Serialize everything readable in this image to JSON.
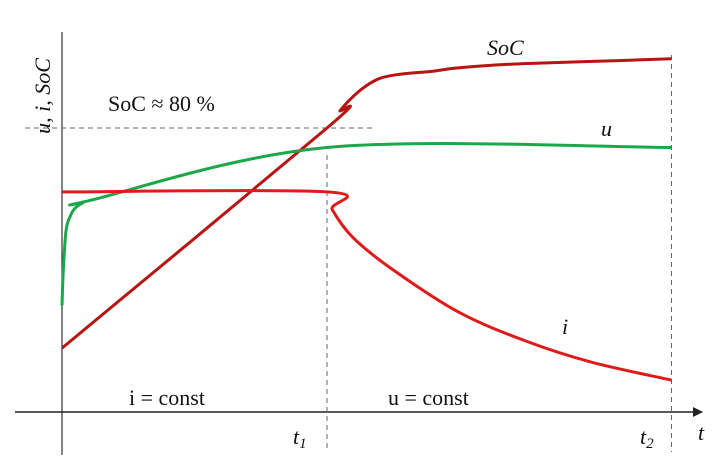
{
  "chart_data": {
    "type": "line",
    "ylabel": "u, i, SoC",
    "xlabel": "t",
    "x_ticks": [
      {
        "label": "t",
        "sub": "1",
        "x": 1
      },
      {
        "label": "t",
        "sub": "2",
        "x": 2.3
      }
    ],
    "phases": [
      {
        "label": "i = const",
        "x_start": 0,
        "x_end": 1
      },
      {
        "label": "u = const",
        "x_start": 1,
        "x_end": 2.3
      }
    ],
    "reference": {
      "label": "SoC ≈ 80 %",
      "y": 0.8
    },
    "xlim": [
      -0.2,
      2.47
    ],
    "ylim": [
      0,
      1.0
    ],
    "series": [
      {
        "name": "SoC",
        "color": "#b81414",
        "x": [
          0,
          1.0,
          1.05,
          1.1,
          1.15,
          1.2,
          1.26,
          1.32,
          1.4,
          1.5,
          1.7,
          1.9,
          2.1,
          2.3
        ],
        "y": [
          0.18,
          0.8,
          0.85,
          0.89,
          0.92,
          0.94,
          0.95,
          0.955,
          0.96,
          0.97,
          0.98,
          0.985,
          0.99,
          0.995
        ]
      },
      {
        "name": "u",
        "color": "#1aa84a",
        "x": [
          0,
          0.005,
          0.015,
          0.03,
          0.05,
          0.08,
          0.1,
          1.0,
          2.3
        ],
        "y": [
          0.3,
          0.4,
          0.51,
          0.55,
          0.575,
          0.59,
          0.595,
          0.745,
          0.745
        ]
      },
      {
        "name": "i",
        "color": "#e01a1a",
        "x": [
          0,
          1.0,
          1.02,
          1.1,
          1.25,
          1.5,
          1.75,
          2.0,
          2.3
        ],
        "y": [
          0.62,
          0.62,
          0.57,
          0.49,
          0.4,
          0.28,
          0.2,
          0.14,
          0.09
        ]
      }
    ]
  }
}
